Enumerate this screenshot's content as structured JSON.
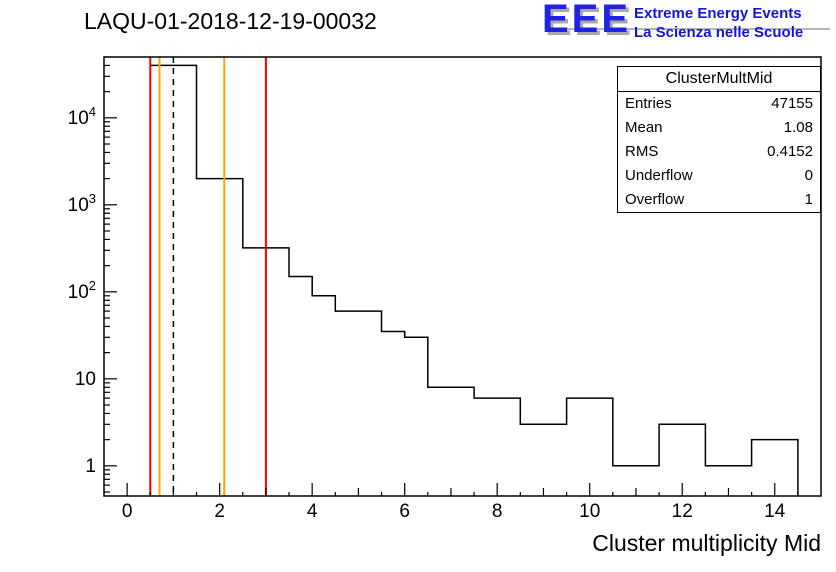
{
  "title": "LAQU-01-2018-12-19-00032",
  "logo": {
    "acronym": "EEE",
    "line1": "Extreme Energy Events",
    "line2": "La Scienza nelle Scuole",
    "color": "#1414dd"
  },
  "stats": {
    "title": "ClusterMultMid",
    "rows": [
      {
        "label": "Entries",
        "value": "47155"
      },
      {
        "label": "Mean",
        "value": "1.08"
      },
      {
        "label": "RMS",
        "value": "0.4152"
      },
      {
        "label": "Underflow",
        "value": "0"
      },
      {
        "label": "Overflow",
        "value": "1"
      }
    ]
  },
  "axes": {
    "x_title": "Cluster multiplicity Mid"
  },
  "chart_data": {
    "type": "histogram",
    "title": "LAQU-01-2018-12-19-00032",
    "xlabel": "Cluster multiplicity Mid",
    "ylabel": "",
    "y_scale": "log",
    "grid": false,
    "x_range": [
      -0.5,
      15.0
    ],
    "y_range": [
      0.45,
      50000
    ],
    "x_ticks": [
      0,
      2,
      4,
      6,
      8,
      10,
      12,
      14
    ],
    "y_ticks": [
      1,
      10,
      100,
      1000,
      10000
    ],
    "y_tick_labels": [
      {
        "base": "1"
      },
      {
        "base": "10"
      },
      {
        "base": "10",
        "sup": "2"
      },
      {
        "base": "10",
        "sup": "3"
      },
      {
        "base": "10",
        "sup": "4"
      }
    ],
    "bin_start": 0.5,
    "bin_width": 0.5,
    "counts": [
      40000,
      40000,
      2000,
      2000,
      320,
      320,
      150,
      90,
      60,
      60,
      35,
      30,
      8,
      8,
      6,
      6,
      3,
      3,
      6,
      6,
      1,
      1,
      3,
      3,
      1,
      1,
      2,
      2
    ],
    "line_color": "#000000",
    "marker_lines": [
      {
        "x": 0.5,
        "color": "#ff0000",
        "style": "solid"
      },
      {
        "x": 0.7,
        "color": "#ffa500",
        "style": "solid"
      },
      {
        "x": 1.0,
        "color": "#000000",
        "style": "dashed"
      },
      {
        "x": 2.1,
        "color": "#ffa500",
        "style": "solid"
      },
      {
        "x": 3.0,
        "color": "#ff0000",
        "style": "solid"
      }
    ]
  }
}
